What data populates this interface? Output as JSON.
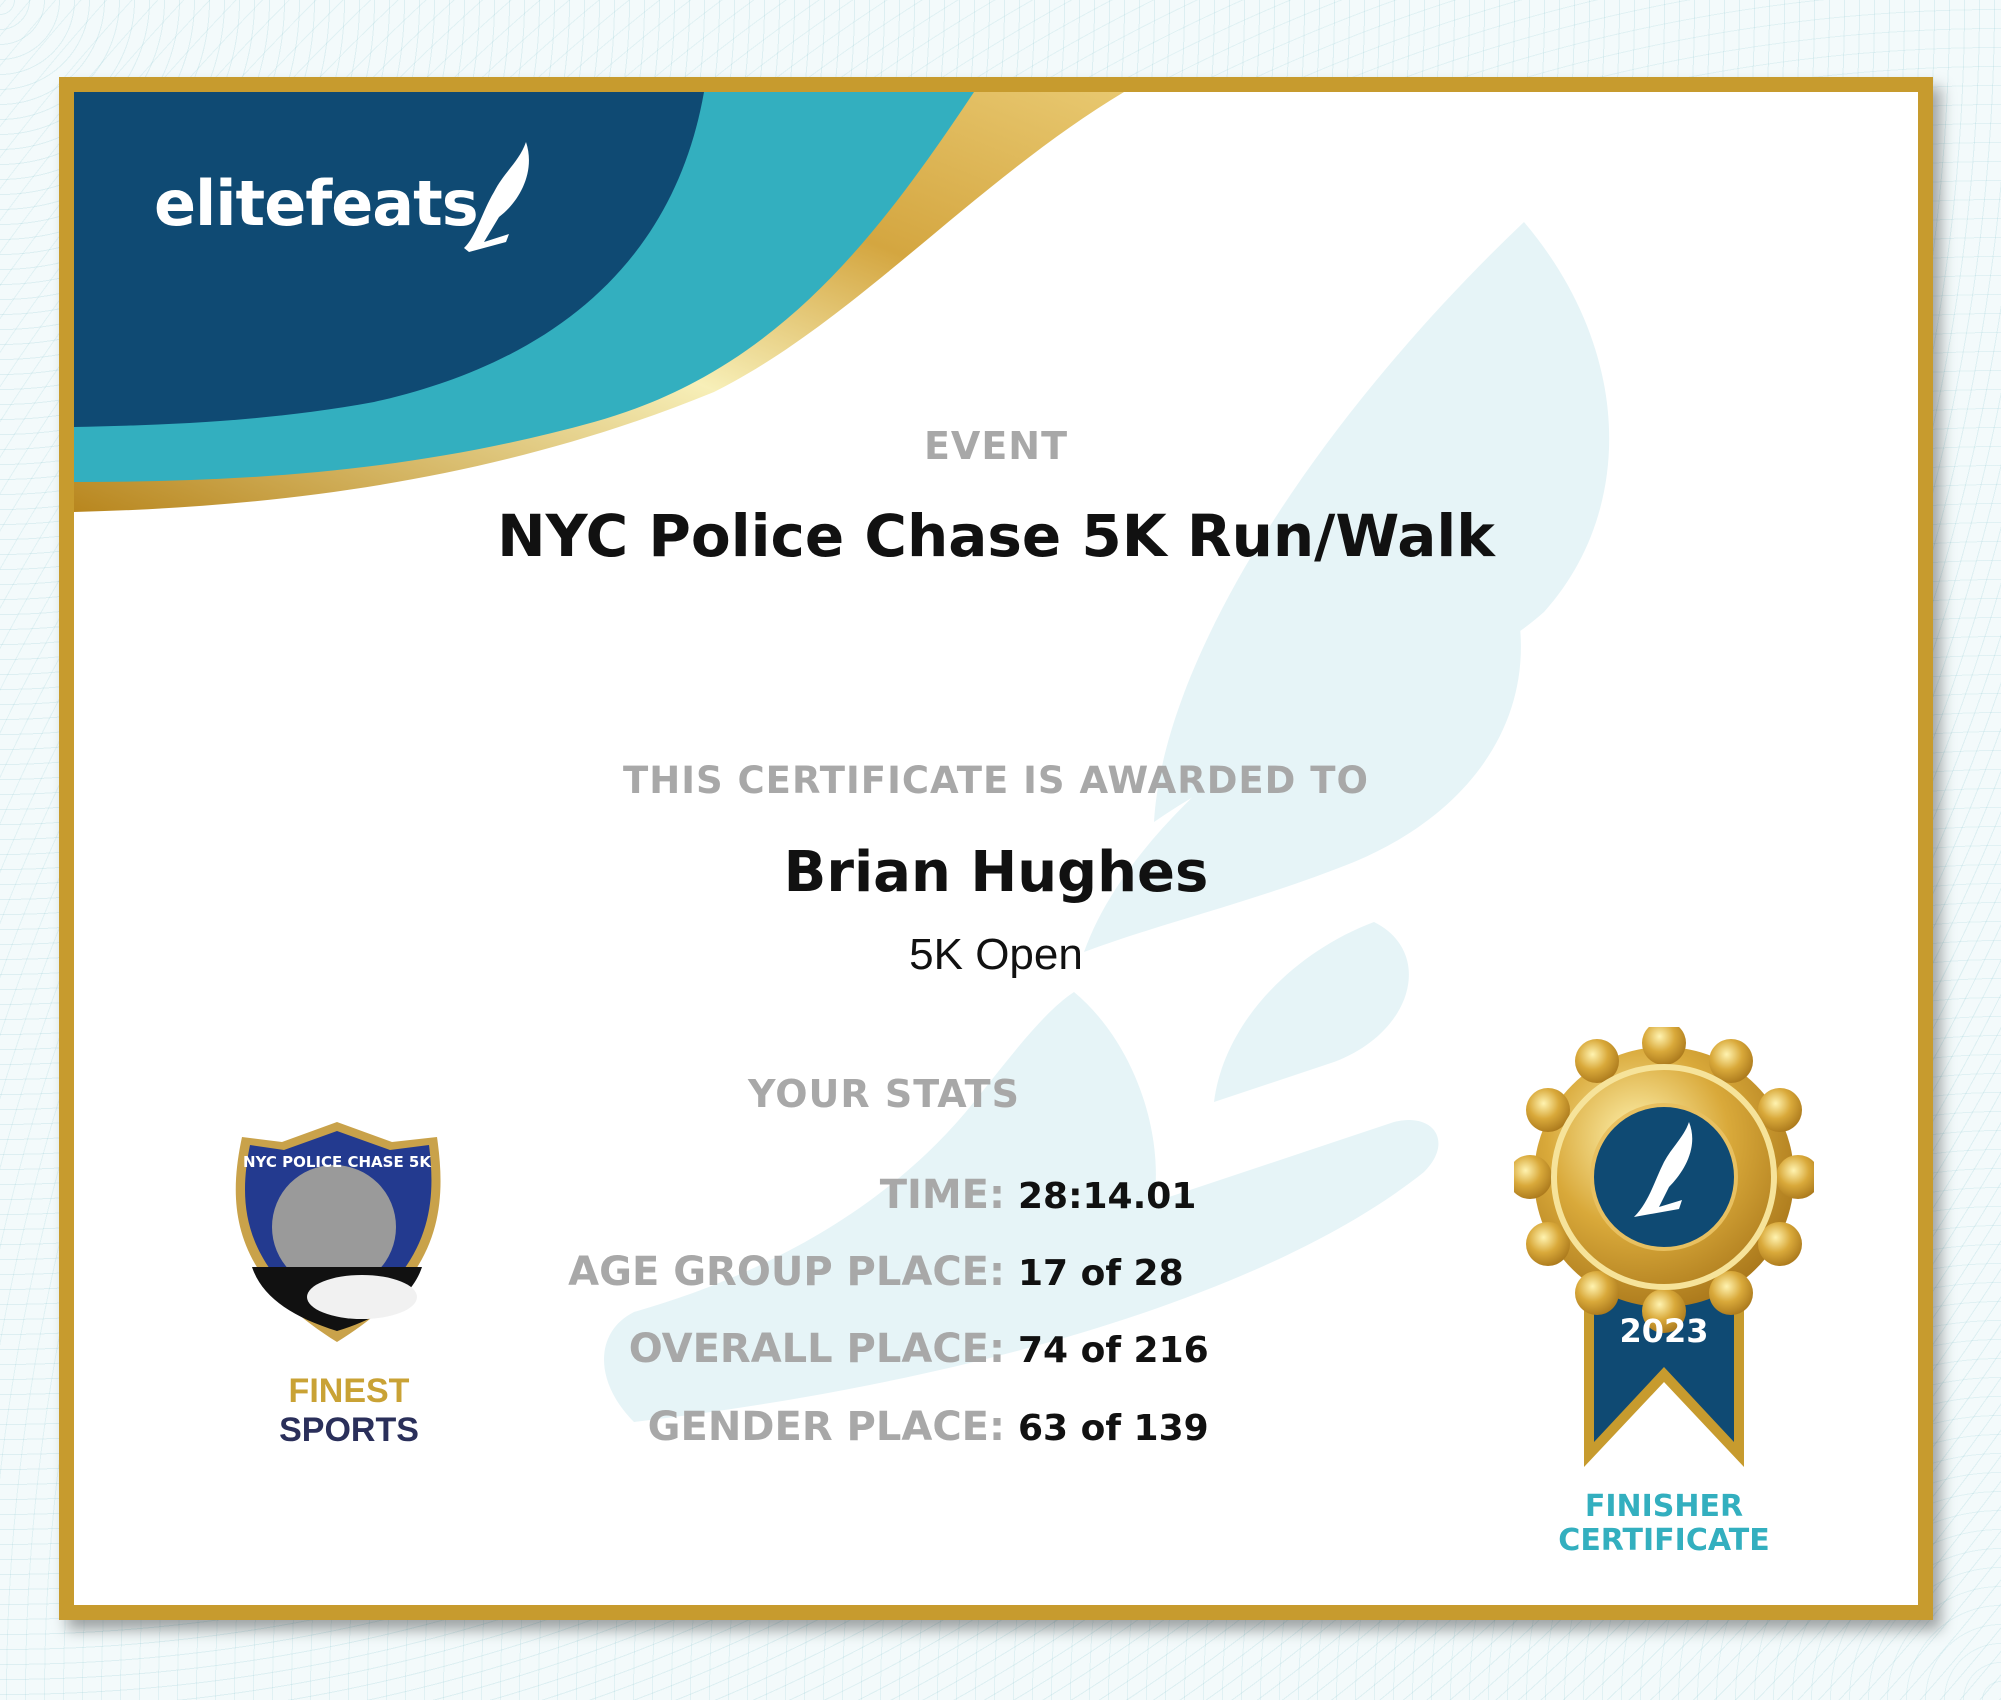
{
  "brand": {
    "logo_text": "elitefeats"
  },
  "event": {
    "label": "EVENT",
    "name": "NYC Police Chase 5K Run/Walk"
  },
  "award": {
    "label": "THIS CERTIFICATE IS AWARDED TO",
    "recipient": "Brian Hughes",
    "division": "5K Open"
  },
  "stats": {
    "heading": "YOUR STATS",
    "rows": [
      {
        "label": "TIME:",
        "value": "28:14.01"
      },
      {
        "label": "AGE GROUP PLACE:",
        "value": "17 of 28"
      },
      {
        "label": "OVERALL PLACE:",
        "value": "74 of 216"
      },
      {
        "label": "GENDER PLACE:",
        "value": "63 of 139"
      }
    ]
  },
  "sponsor": {
    "badge_text": "NYC POLICE CHASE 5K",
    "name_part1": "FINEST",
    "name_part2": "SPORTS"
  },
  "medal": {
    "year": "2023",
    "caption_line1": "FINISHER",
    "caption_line2": "CERTIFICATE"
  },
  "colors": {
    "navy": "#0f4a73",
    "teal": "#33afbf",
    "gold": "#c79b2e",
    "grey_label": "#a8a8a8"
  }
}
